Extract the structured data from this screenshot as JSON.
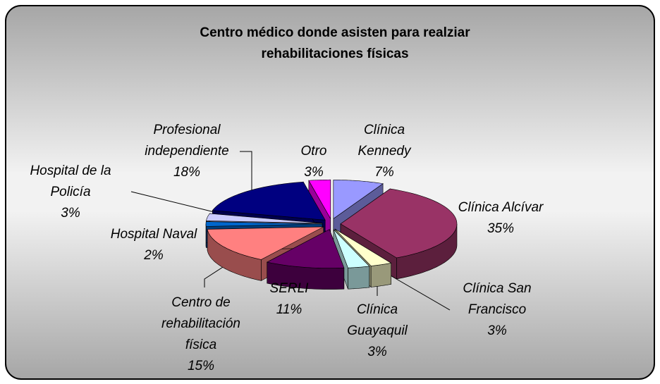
{
  "chart_data": {
    "type": "pie3d",
    "title": "Centro médico donde asisten para realziar rehabilitaciones físicas",
    "categories": [
      "Clínica Kennedy",
      "Clínica Alcívar",
      "Clínica San Francisco",
      "Clínica Guayaquil",
      "SERLI",
      "Centro de rehabilitación física",
      "Hospital Naval",
      "Hospital de la Policía",
      "Profesional independiente",
      "Otro"
    ],
    "values": [
      7,
      35,
      3,
      3,
      11,
      15,
      2,
      3,
      18,
      3
    ],
    "value_labels": [
      "7%",
      "35%",
      "3%",
      "3%",
      "11%",
      "15%",
      "2%",
      "3%",
      "18%",
      "3%"
    ],
    "colors": [
      "#9999ff",
      "#993366",
      "#ffffcc",
      "#ccffff",
      "#660066",
      "#ff8080",
      "#0066cc",
      "#ccccff",
      "#000080",
      "#ff00ff"
    ]
  }
}
